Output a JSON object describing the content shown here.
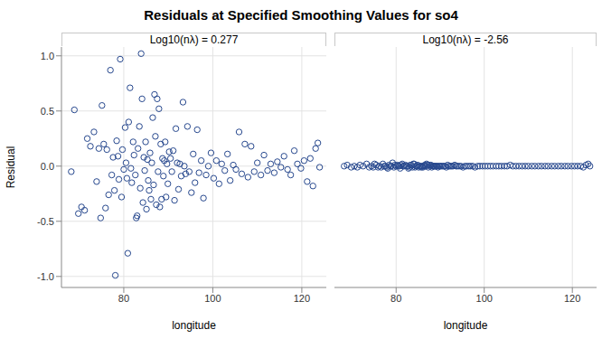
{
  "title": "Residuals at Specified Smoothing Values for so4",
  "chart_data": [
    {
      "type": "scatter",
      "title": "Log10(nλ) = 0.277",
      "x_label": "longitude",
      "y_label": "Residual",
      "marker": "open_circle",
      "color": "#27488e",
      "grid": true,
      "xlim": [
        66,
        125.5
      ],
      "xticks": [
        80,
        100,
        120
      ],
      "ylim": [
        -1.1,
        1.08
      ],
      "yticks": [
        {
          "value": -1,
          "label": "-1.0"
        },
        -0.5,
        {
          "value": 0,
          "label": "0.0"
        },
        0.5,
        {
          "value": 1,
          "label": "1.0"
        }
      ],
      "x": [
        68.2,
        68.9,
        69.8,
        70.5,
        71.2,
        71.8,
        72.5,
        73.3,
        73.9,
        74.4,
        74.8,
        75.1,
        75.5,
        75.9,
        76.2,
        76.6,
        77.0,
        77.3,
        77.6,
        77.9,
        78.1,
        78.4,
        78.7,
        78.9,
        79.2,
        79.5,
        79.7,
        80.0,
        80.3,
        80.5,
        80.7,
        80.9,
        81.1,
        81.4,
        81.6,
        81.8,
        82.1,
        82.3,
        82.6,
        82.8,
        83.0,
        83.2,
        83.5,
        83.7,
        83.9,
        84.1,
        84.3,
        84.5,
        84.7,
        84.9,
        85.1,
        85.3,
        85.5,
        85.7,
        85.9,
        86.1,
        86.3,
        86.5,
        86.7,
        86.9,
        87.1,
        87.3,
        87.5,
        87.7,
        87.9,
        88.1,
        88.3,
        88.5,
        88.7,
        88.9,
        89.1,
        89.3,
        89.5,
        89.7,
        89.9,
        90.2,
        90.5,
        90.8,
        91.1,
        91.4,
        91.7,
        92.0,
        92.3,
        92.6,
        92.9,
        93.3,
        93.6,
        93.9,
        94.3,
        94.7,
        95.2,
        95.6,
        96.0,
        96.5,
        96.9,
        97.4,
        97.9,
        98.5,
        99.0,
        99.6,
        100.2,
        100.8,
        101.4,
        102.0,
        102.7,
        103.3,
        103.9,
        104.6,
        105.2,
        105.9,
        106.5,
        107.2,
        107.9,
        108.6,
        109.3,
        110.0,
        110.8,
        111.5,
        112.3,
        113.0,
        113.8,
        114.5,
        115.3,
        116.0,
        116.8,
        117.5,
        118.3,
        119.0,
        119.8,
        120.5,
        121.2,
        121.9,
        122.5,
        123.1,
        123.6,
        124.0
      ],
      "values": [
        -0.05,
        0.51,
        -0.43,
        -0.37,
        -0.4,
        0.25,
        0.18,
        0.31,
        -0.14,
        0.16,
        -0.47,
        0.55,
        0.2,
        -0.38,
        0.15,
        -0.26,
        0.87,
        -0.08,
        0.08,
        -0.22,
        -0.99,
        0.23,
        0.09,
        -0.12,
        0.97,
        -0.28,
        0.15,
        -0.03,
        0.35,
        0.03,
        -0.11,
        -0.79,
        0.4,
        0.71,
        -0.02,
        -0.15,
        0.22,
        0.1,
        -0.08,
        -0.47,
        -0.45,
        0.16,
        0.36,
        -0.2,
        1.02,
        0.61,
        -0.33,
        0.08,
        -0.04,
        0.22,
        -0.39,
        0.06,
        -0.13,
        -0.22,
        0.12,
        -0.3,
        0.03,
        0.44,
        -0.17,
        0.65,
        0.27,
        -0.35,
        0.61,
        -0.05,
        0.52,
        -0.37,
        0.2,
        -0.3,
        0.07,
        -0.09,
        0.05,
        0.22,
        -0.28,
        0.02,
        -0.16,
        0.13,
        0.07,
        -0.05,
        0.14,
        -0.31,
        0.34,
        0.03,
        -0.21,
        0.02,
        -0.09,
        0.58,
        0.0,
        -0.07,
        0.36,
        -0.05,
        -0.24,
        0.11,
        -0.15,
        0.33,
        -0.06,
        0.05,
        -0.29,
        -0.08,
        0.0,
        0.12,
        -0.11,
        0.05,
        -0.16,
        0.02,
        -0.04,
        0.11,
        -0.13,
        0.01,
        -0.03,
        0.31,
        -0.07,
        0.2,
        -0.1,
        0.18,
        -0.05,
        0.03,
        -0.08,
        0.1,
        -0.04,
        0.02,
        -0.06,
        0.04,
        -0.01,
        0.09,
        -0.03,
        -0.08,
        0.14,
        0.02,
        -0.02,
        0.05,
        -0.14,
        0.07,
        -0.18,
        0.16,
        0.21,
        -0.01
      ]
    },
    {
      "type": "scatter",
      "title": "Log10(nλ) = -2.56",
      "x_label": "longitude",
      "marker": "open_circle",
      "color": "#27488e",
      "grid": true,
      "tick_labels": "x",
      "xlim": [
        66,
        125.5
      ],
      "xticks": [
        80,
        100,
        120
      ],
      "ylim": [
        -1.1,
        1.08
      ],
      "yticks": [
        -1,
        -0.5,
        0,
        0.5,
        1
      ],
      "x": [
        68.2,
        68.9,
        69.8,
        70.5,
        71.2,
        71.8,
        72.5,
        73.3,
        73.9,
        74.4,
        74.8,
        75.1,
        75.5,
        75.9,
        76.2,
        76.6,
        77.0,
        77.3,
        77.6,
        77.9,
        78.1,
        78.4,
        78.7,
        78.9,
        79.2,
        79.5,
        79.7,
        80.0,
        80.3,
        80.5,
        80.7,
        80.9,
        81.1,
        81.4,
        81.6,
        81.8,
        82.1,
        82.3,
        82.6,
        82.8,
        83.0,
        83.2,
        83.5,
        83.7,
        83.9,
        84.1,
        84.3,
        84.5,
        84.7,
        84.9,
        85.1,
        85.3,
        85.5,
        85.7,
        85.9,
        86.1,
        86.3,
        86.5,
        86.7,
        86.9,
        87.1,
        87.3,
        87.5,
        87.7,
        87.9,
        88.1,
        88.3,
        88.5,
        88.7,
        88.9,
        89.1,
        89.3,
        89.5,
        89.7,
        89.9,
        90.2,
        90.5,
        90.8,
        91.1,
        91.4,
        91.7,
        92.0,
        92.3,
        92.6,
        92.9,
        93.3,
        93.6,
        93.9,
        94.3,
        94.7,
        95.2,
        95.6,
        96.0,
        96.5,
        96.9,
        97.4,
        97.9,
        98.5,
        99.0,
        99.6,
        100.2,
        100.8,
        101.4,
        102.0,
        102.7,
        103.3,
        103.9,
        104.6,
        105.2,
        105.9,
        106.5,
        107.2,
        107.9,
        108.6,
        109.3,
        110.0,
        110.8,
        111.5,
        112.3,
        113.0,
        113.8,
        114.5,
        115.3,
        116.0,
        116.8,
        117.5,
        118.3,
        119.0,
        119.8,
        120.5,
        121.2,
        121.9,
        122.5,
        123.1,
        123.6,
        124.0
      ],
      "values": [
        0.0,
        0.01,
        -0.01,
        0.0,
        -0.01,
        0.01,
        0.0,
        0.02,
        -0.01,
        0.0,
        -0.01,
        0.02,
        0.01,
        -0.01,
        0.0,
        -0.01,
        0.02,
        0.0,
        0.0,
        -0.01,
        -0.02,
        0.01,
        0.0,
        0.0,
        0.03,
        -0.01,
        0.01,
        0.0,
        0.01,
        0.0,
        0.0,
        -0.02,
        0.01,
        0.02,
        0.0,
        0.0,
        0.01,
        0.0,
        0.0,
        -0.02,
        -0.01,
        0.01,
        0.01,
        -0.01,
        0.02,
        0.02,
        -0.01,
        0.0,
        0.0,
        0.01,
        -0.01,
        0.0,
        0.0,
        -0.01,
        0.0,
        -0.01,
        0.0,
        0.01,
        0.0,
        0.02,
        0.01,
        -0.01,
        0.01,
        0.0,
        0.01,
        -0.01,
        0.0,
        0.0,
        0.0,
        0.0,
        0.0,
        0.0,
        -0.01,
        0.0,
        0.0,
        0.0,
        0.0,
        0.0,
        0.0,
        -0.01,
        0.01,
        0.0,
        0.0,
        0.0,
        0.0,
        0.01,
        0.0,
        0.0,
        0.0,
        0.0,
        -0.01,
        0.0,
        0.0,
        0.0,
        0.0,
        0.0,
        -0.01,
        0.0,
        0.0,
        0.0,
        0.0,
        0.0,
        0.0,
        0.0,
        0.0,
        0.0,
        0.0,
        0.0,
        0.0,
        0.01,
        0.0,
        0.0,
        0.0,
        0.0,
        0.0,
        0.0,
        0.0,
        0.0,
        0.0,
        0.0,
        0.0,
        0.0,
        0.0,
        0.0,
        0.0,
        0.0,
        0.0,
        0.0,
        0.0,
        0.0,
        0.0,
        0.0,
        -0.01,
        0.01,
        0.02,
        0.0
      ]
    }
  ]
}
